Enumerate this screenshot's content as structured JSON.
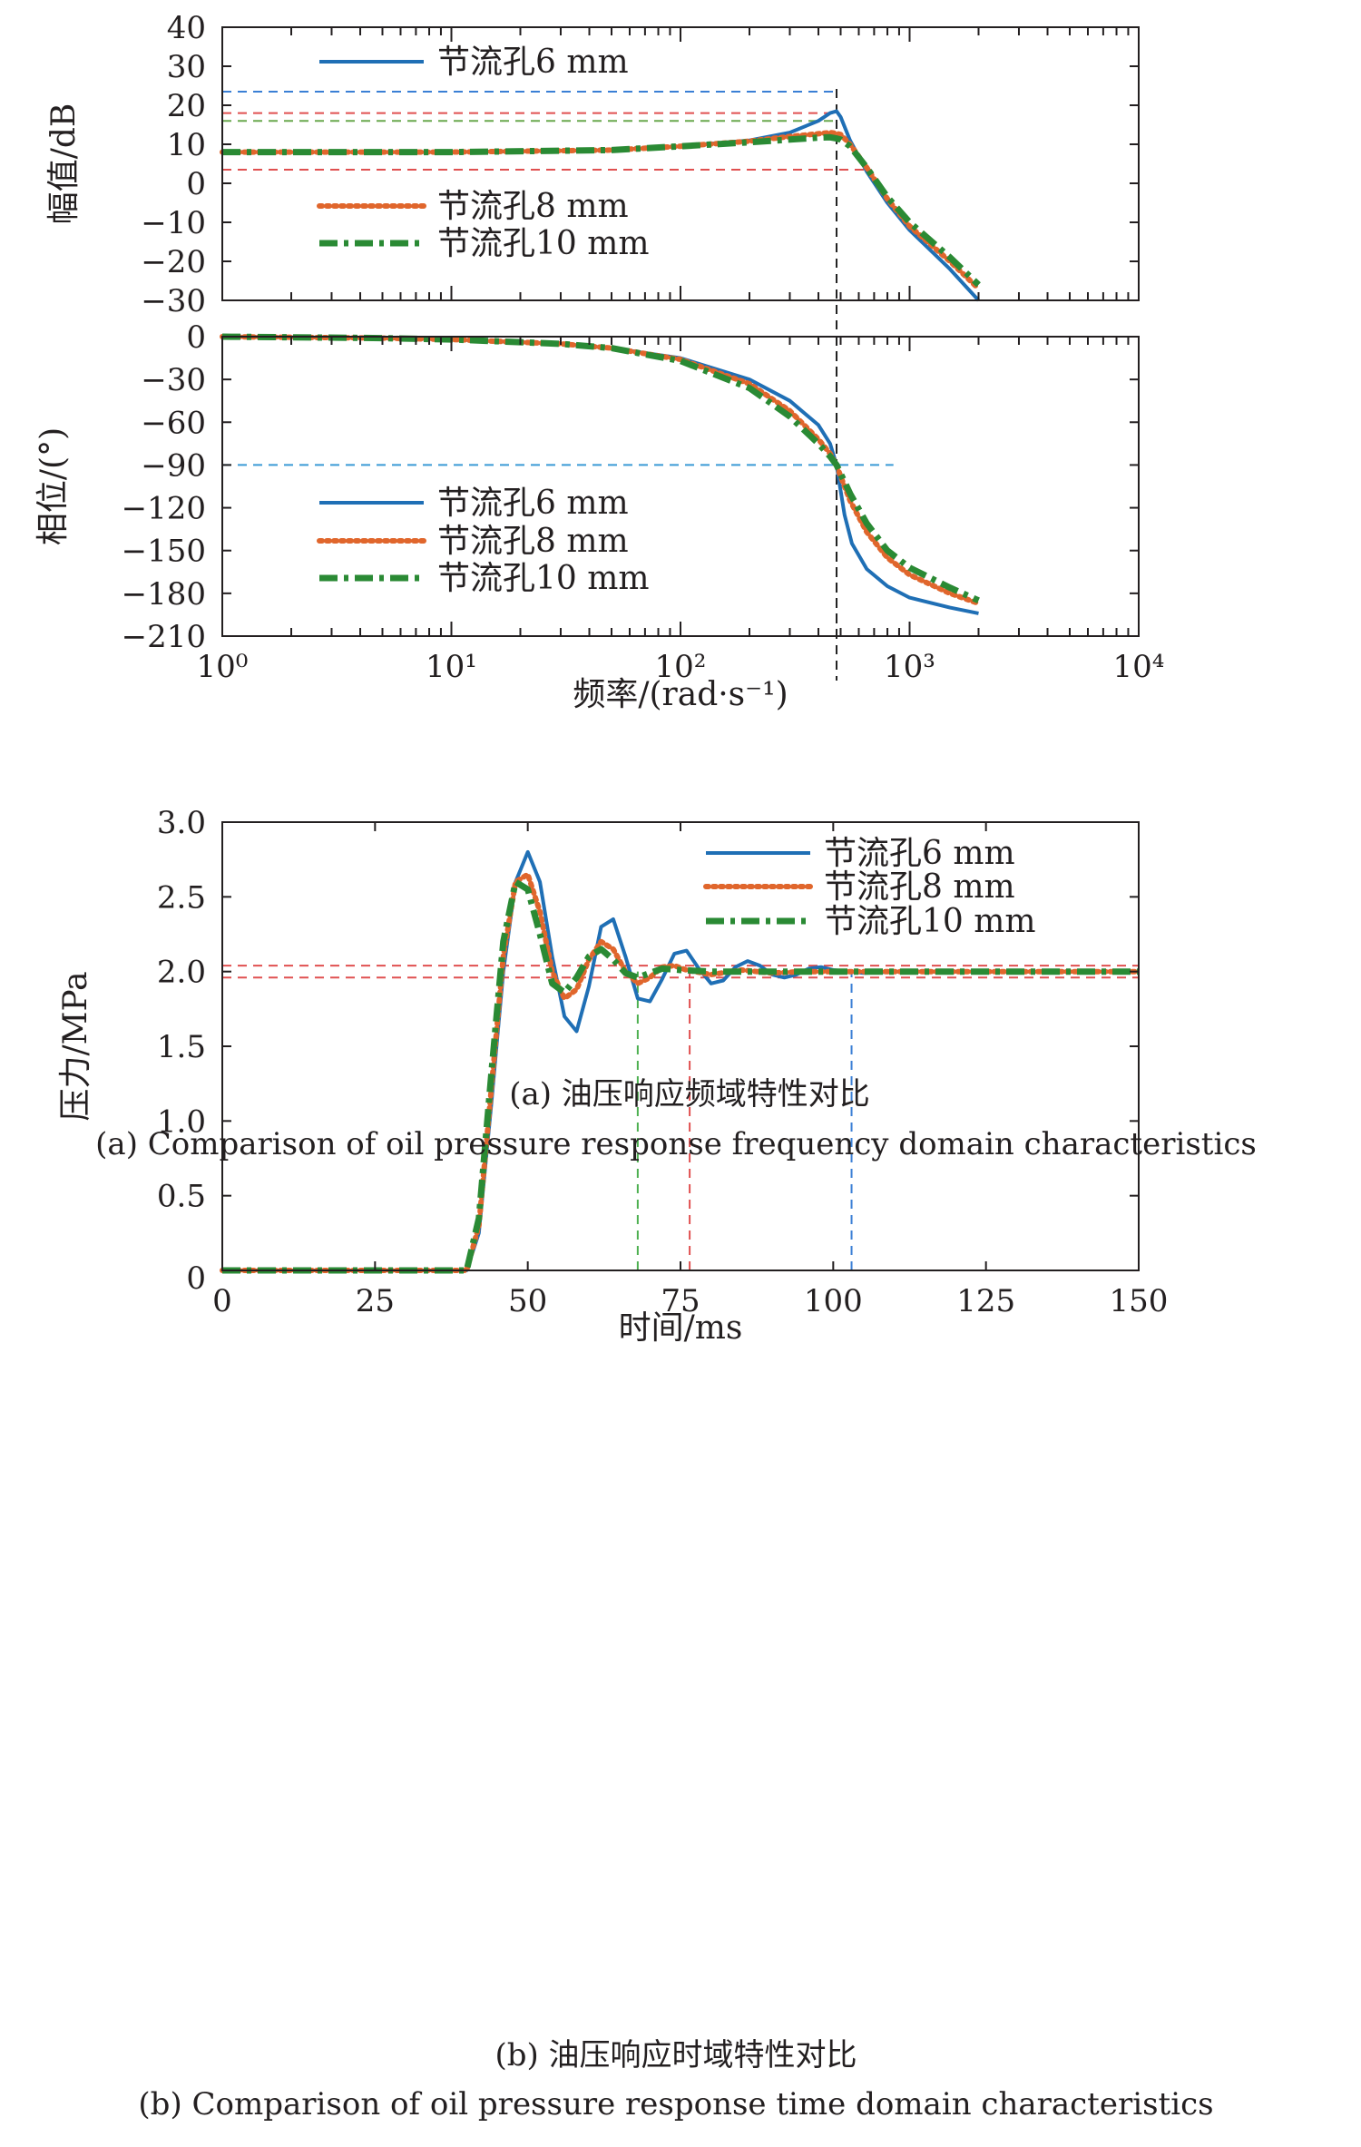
{
  "chart_data": [
    {
      "id": "magnitude",
      "type": "line",
      "ylabel": "幅值/dB",
      "x_scale": "log",
      "xlim": [
        1,
        10000
      ],
      "ylim": [
        -30,
        40
      ],
      "yticks": [
        -30,
        -20,
        -10,
        0,
        10,
        20,
        30,
        40
      ],
      "legend": [
        {
          "label": "节流孔6 mm",
          "series": 0
        },
        {
          "label": "节流孔8 mm",
          "series": 1
        },
        {
          "label": "节流孔10 mm",
          "series": 2
        }
      ],
      "series": [
        {
          "name": "节流孔6 mm",
          "color": "#1f6fb5",
          "style": "solid",
          "x": [
            1,
            10,
            50,
            100,
            200,
            300,
            400,
            450,
            480,
            500,
            550,
            650,
            800,
            1000,
            1500,
            2000
          ],
          "y": [
            8,
            8,
            8.5,
            9.5,
            11,
            13,
            16,
            18,
            18.5,
            17,
            11,
            3,
            -5,
            -12,
            -22,
            -30
          ]
        },
        {
          "name": "节流孔8 mm",
          "color": "#e0662c",
          "style": "dotted",
          "x": [
            1,
            10,
            50,
            100,
            200,
            300,
            400,
            450,
            480,
            500,
            550,
            650,
            800,
            1000,
            1500,
            2000
          ],
          "y": [
            8,
            8,
            8.5,
            9.5,
            10.8,
            12,
            12.7,
            13,
            12.8,
            12.5,
            10,
            4,
            -4,
            -11,
            -20,
            -27
          ]
        },
        {
          "name": "节流孔10 mm",
          "color": "#2a8a34",
          "style": "dashdot",
          "x": [
            1,
            10,
            50,
            100,
            200,
            300,
            400,
            450,
            480,
            500,
            550,
            650,
            800,
            1000,
            1500,
            2000
          ],
          "y": [
            8,
            8,
            8.5,
            9.5,
            10.5,
            11.2,
            11.7,
            11.8,
            11.5,
            11.2,
            9.5,
            4,
            -3.5,
            -10,
            -19,
            -26
          ]
        }
      ],
      "reference_lines": [
        {
          "axis": "y",
          "value": 23.5,
          "x_to": 480,
          "color": "#3a7fd5"
        },
        {
          "axis": "y",
          "value": 18,
          "x_to": 480,
          "color": "#e05050"
        },
        {
          "axis": "y",
          "value": 16,
          "x_to": 480,
          "color": "#6aa84f"
        },
        {
          "axis": "y",
          "value": 3.5,
          "x_to": 680,
          "color": "#e05050"
        },
        {
          "axis": "x",
          "value": 480,
          "color": "#222222"
        }
      ]
    },
    {
      "id": "phase",
      "type": "line",
      "ylabel": "相位/(°)",
      "xlabel": "频率/(rad·s⁻¹)",
      "x_scale": "log",
      "xlim": [
        1,
        10000
      ],
      "ylim": [
        -210,
        0
      ],
      "xticks": [
        1,
        10,
        100,
        1000,
        10000
      ],
      "xtick_labels": [
        "10⁰",
        "10¹",
        "10²",
        "10³",
        "10⁴"
      ],
      "yticks": [
        -210,
        -180,
        -150,
        -120,
        -90,
        -60,
        -30,
        0
      ],
      "legend": [
        {
          "label": "节流孔6 mm",
          "series": 0
        },
        {
          "label": "节流孔8 mm",
          "series": 1
        },
        {
          "label": "节流孔10 mm",
          "series": 2
        }
      ],
      "series": [
        {
          "name": "节流孔6 mm",
          "color": "#1f6fb5",
          "style": "solid",
          "x": [
            1,
            5,
            10,
            30,
            50,
            100,
            200,
            300,
            400,
            450,
            480,
            500,
            520,
            560,
            650,
            800,
            1000,
            1500,
            2000
          ],
          "y": [
            0,
            -1,
            -2,
            -5,
            -8,
            -15,
            -30,
            -45,
            -62,
            -75,
            -90,
            -108,
            -125,
            -145,
            -163,
            -175,
            -183,
            -190,
            -194
          ]
        },
        {
          "name": "节流孔8 mm",
          "color": "#e0662c",
          "style": "dotted",
          "x": [
            1,
            5,
            10,
            30,
            50,
            100,
            200,
            300,
            400,
            450,
            480,
            500,
            550,
            650,
            800,
            1000,
            1500,
            2000
          ],
          "y": [
            0,
            -1,
            -2,
            -5,
            -8,
            -16,
            -33,
            -52,
            -72,
            -82,
            -90,
            -98,
            -115,
            -137,
            -155,
            -167,
            -180,
            -187
          ]
        },
        {
          "name": "节流孔10 mm",
          "color": "#2a8a34",
          "style": "dashdot",
          "x": [
            1,
            5,
            10,
            30,
            50,
            100,
            200,
            300,
            400,
            450,
            480,
            500,
            550,
            650,
            800,
            1000,
            1500,
            2000
          ],
          "y": [
            0,
            -1,
            -2,
            -5,
            -8,
            -17,
            -36,
            -56,
            -75,
            -84,
            -90,
            -96,
            -110,
            -131,
            -150,
            -162,
            -176,
            -185
          ]
        }
      ],
      "reference_lines": [
        {
          "axis": "y",
          "value": -90,
          "x_to": 850,
          "color": "#3a9ad5"
        },
        {
          "axis": "x",
          "value": 480,
          "color": "#222222"
        }
      ]
    },
    {
      "id": "time",
      "type": "line",
      "ylabel": "压力/MPa",
      "xlabel": "时间/ms",
      "xlim": [
        0,
        150
      ],
      "ylim": [
        0,
        3
      ],
      "xticks": [
        0,
        25,
        50,
        75,
        100,
        125,
        150
      ],
      "yticks": [
        0.5,
        1.0,
        1.5,
        2.0,
        2.5,
        3.0
      ],
      "legend": [
        {
          "label": "节流孔6 mm",
          "series": 0
        },
        {
          "label": "节流孔8 mm",
          "series": 1
        },
        {
          "label": "节流孔10 mm",
          "series": 2
        }
      ],
      "series": [
        {
          "name": "节流孔6 mm",
          "color": "#1f6fb5",
          "style": "solid",
          "x": [
            0,
            40,
            42,
            44,
            46,
            48,
            50,
            52,
            54,
            56,
            58,
            60,
            62,
            64,
            66,
            68,
            70,
            72,
            74,
            76,
            78,
            80,
            82,
            84,
            86,
            88,
            90,
            92,
            94,
            96,
            98,
            100,
            105,
            110,
            150
          ],
          "y": [
            0,
            0,
            0.25,
            1.1,
            2.0,
            2.6,
            2.8,
            2.6,
            2.1,
            1.7,
            1.6,
            1.9,
            2.3,
            2.35,
            2.1,
            1.82,
            1.8,
            1.95,
            2.12,
            2.14,
            2.02,
            1.92,
            1.94,
            2.03,
            2.07,
            2.04,
            1.98,
            1.96,
            1.98,
            2.02,
            2.03,
            2.01,
            1.99,
            2.0,
            2.0
          ]
        },
        {
          "name": "节流孔8 mm",
          "color": "#e0662c",
          "style": "dotted",
          "x": [
            0,
            40,
            42,
            44,
            46,
            48,
            50,
            52,
            54,
            56,
            58,
            60,
            62,
            64,
            66,
            68,
            70,
            72,
            74,
            76,
            80,
            85,
            90,
            95,
            150
          ],
          "y": [
            0,
            0,
            0.3,
            1.2,
            2.1,
            2.6,
            2.65,
            2.4,
            2.0,
            1.82,
            1.88,
            2.08,
            2.2,
            2.15,
            2.0,
            1.92,
            1.96,
            2.03,
            2.04,
            2.01,
            1.98,
            2.01,
            1.99,
            2.0,
            2.0
          ]
        },
        {
          "name": "节流孔10 mm",
          "color": "#2a8a34",
          "style": "dashdot",
          "x": [
            0,
            40,
            42,
            44,
            46,
            48,
            50,
            52,
            54,
            56,
            58,
            60,
            62,
            64,
            66,
            68,
            70,
            72,
            75,
            80,
            150
          ],
          "y": [
            0,
            0,
            0.35,
            1.3,
            2.2,
            2.6,
            2.55,
            2.25,
            1.92,
            1.86,
            1.96,
            2.1,
            2.15,
            2.08,
            1.99,
            1.96,
            1.99,
            2.02,
            2.01,
            2.0,
            2.0
          ]
        }
      ],
      "reference_lines": [
        {
          "axis": "y",
          "value": 2.04,
          "color": "#e05050"
        },
        {
          "axis": "y",
          "value": 1.96,
          "color": "#e05050"
        },
        {
          "axis": "x",
          "value": 68,
          "y_to": 2.0,
          "color": "#4caf50"
        },
        {
          "axis": "x",
          "value": 76.5,
          "y_to": 2.0,
          "color": "#e05050"
        },
        {
          "axis": "x",
          "value": 103,
          "y_to": 2.0,
          "color": "#3a7fd5"
        }
      ]
    }
  ],
  "captions": {
    "a_zh": "(a) 油压响应频域特性对比",
    "a_en": "(a) Comparison of oil pressure response frequency domain characteristics",
    "b_zh": "(b) 油压响应时域特性对比",
    "b_en": "(b) Comparison of oil pressure response time domain characteristics"
  }
}
